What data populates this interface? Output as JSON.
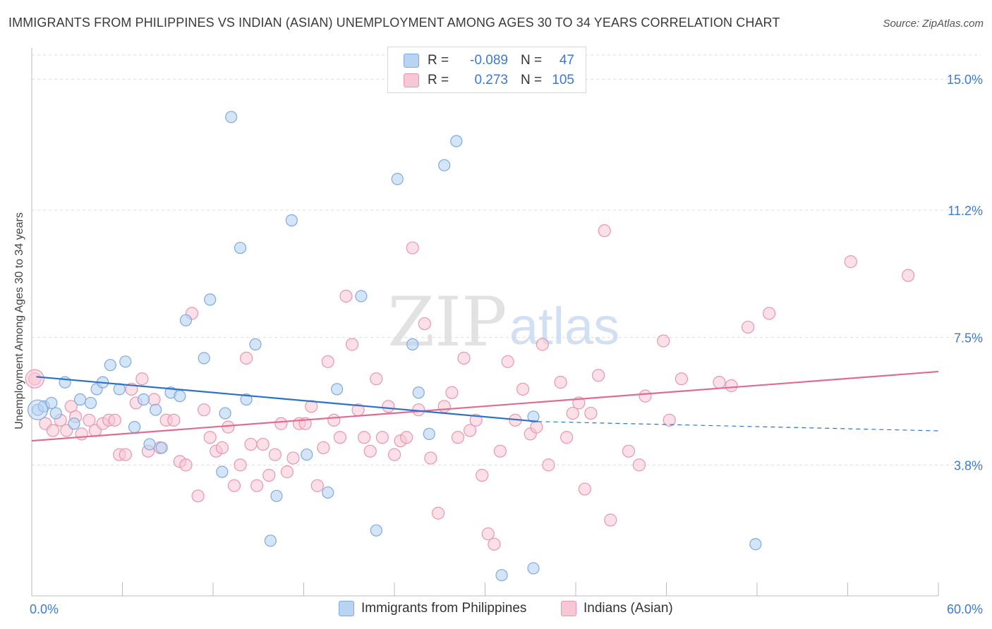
{
  "title": "IMMIGRANTS FROM PHILIPPINES VS INDIAN (ASIAN) UNEMPLOYMENT AMONG AGES 30 TO 34 YEARS CORRELATION CHART",
  "source": "Source: ZipAtlas.com",
  "watermark": {
    "zip": "ZIP",
    "atlas": "atlas"
  },
  "legend": {
    "rows": [
      {
        "r_label": "R =",
        "r_value": "-0.089",
        "n_label": "N =",
        "n_value": "47"
      },
      {
        "r_label": "R =",
        "r_value": "0.273",
        "n_label": "N =",
        "n_value": "105"
      }
    ]
  },
  "colors": {
    "blue_fill": "#b9d3f3",
    "blue_stroke": "#7ea9e0",
    "blue_line": "#2c72c9",
    "pink_fill": "#f7c7d6",
    "pink_stroke": "#e996b0",
    "pink_line": "#e06c93",
    "tick_label": "#3d7ad1",
    "grid": "#dddddd"
  },
  "chart_data": {
    "type": "scatter",
    "title": "IMMIGRANTS FROM PHILIPPINES VS INDIAN (ASIAN) UNEMPLOYMENT AMONG AGES 30 TO 34 YEARS CORRELATION CHART",
    "xlabel": "",
    "ylabel": "Unemployment Among Ages 30 to 34 years",
    "xlim": [
      0,
      60
    ],
    "ylim": [
      0,
      15.7
    ],
    "x_tick_labels": [
      "0.0%",
      "60.0%"
    ],
    "y_ticks": [
      3.8,
      7.5,
      11.2,
      15.0
    ],
    "y_tick_labels": [
      "3.8%",
      "7.5%",
      "11.2%",
      "15.0%"
    ],
    "grid": "horizontal dashed",
    "legend_position": "top-center",
    "series": [
      {
        "name": "Immigrants from Philippines",
        "color": "#b9d3f3",
        "trend": {
          "x": [
            0.3,
            33.5
          ],
          "y": [
            6.36,
            5.06
          ],
          "dashed_to": [
            60,
            4.79
          ]
        },
        "points": [
          [
            0.4,
            5.4
          ],
          [
            0.8,
            5.5
          ],
          [
            1.3,
            5.6
          ],
          [
            1.6,
            5.3
          ],
          [
            2.2,
            6.2
          ],
          [
            2.8,
            5.0
          ],
          [
            3.2,
            5.7
          ],
          [
            3.9,
            5.6
          ],
          [
            4.3,
            6.0
          ],
          [
            4.7,
            6.2
          ],
          [
            5.2,
            6.7
          ],
          [
            5.8,
            6.0
          ],
          [
            6.2,
            6.8
          ],
          [
            6.8,
            4.9
          ],
          [
            7.4,
            5.7
          ],
          [
            7.8,
            4.4
          ],
          [
            8.2,
            5.4
          ],
          [
            8.6,
            4.3
          ],
          [
            9.2,
            5.9
          ],
          [
            9.8,
            5.8
          ],
          [
            10.2,
            8.0
          ],
          [
            11.4,
            6.9
          ],
          [
            11.8,
            8.6
          ],
          [
            12.6,
            3.6
          ],
          [
            12.8,
            5.3
          ],
          [
            13.2,
            13.9
          ],
          [
            13.8,
            10.1
          ],
          [
            14.2,
            5.7
          ],
          [
            14.8,
            7.3
          ],
          [
            15.8,
            1.6
          ],
          [
            16.2,
            2.9
          ],
          [
            17.2,
            10.9
          ],
          [
            18.2,
            4.1
          ],
          [
            19.6,
            3.0
          ],
          [
            20.2,
            6.0
          ],
          [
            21.8,
            8.7
          ],
          [
            22.8,
            1.9
          ],
          [
            24.2,
            12.1
          ],
          [
            25.2,
            7.3
          ],
          [
            25.6,
            5.9
          ],
          [
            26.3,
            4.7
          ],
          [
            27.3,
            12.5
          ],
          [
            28.1,
            13.2
          ],
          [
            31.1,
            0.6
          ],
          [
            33.2,
            5.2
          ],
          [
            33.2,
            0.8
          ],
          [
            47.9,
            1.5
          ]
        ]
      },
      {
        "name": "Indians (Asian)",
        "color": "#f7c7d6",
        "trend": {
          "x": [
            0,
            60
          ],
          "y": [
            4.5,
            6.51
          ]
        },
        "points": [
          [
            0.2,
            6.3
          ],
          [
            0.9,
            5.0
          ],
          [
            1.4,
            4.8
          ],
          [
            1.9,
            5.1
          ],
          [
            2.3,
            4.8
          ],
          [
            2.6,
            5.5
          ],
          [
            2.9,
            5.2
          ],
          [
            3.3,
            4.7
          ],
          [
            3.8,
            5.1
          ],
          [
            4.2,
            4.8
          ],
          [
            4.7,
            5.0
          ],
          [
            5.1,
            5.1
          ],
          [
            5.5,
            5.1
          ],
          [
            5.8,
            4.1
          ],
          [
            6.2,
            4.1
          ],
          [
            6.6,
            6.0
          ],
          [
            6.9,
            5.6
          ],
          [
            7.3,
            6.3
          ],
          [
            7.7,
            4.2
          ],
          [
            8.1,
            5.7
          ],
          [
            8.5,
            4.3
          ],
          [
            8.9,
            5.1
          ],
          [
            9.4,
            5.1
          ],
          [
            9.8,
            3.9
          ],
          [
            10.2,
            3.8
          ],
          [
            10.6,
            8.2
          ],
          [
            11.0,
            2.9
          ],
          [
            11.4,
            5.4
          ],
          [
            11.8,
            4.6
          ],
          [
            12.2,
            4.2
          ],
          [
            12.6,
            4.3
          ],
          [
            13.0,
            4.9
          ],
          [
            13.4,
            3.2
          ],
          [
            13.8,
            3.8
          ],
          [
            14.2,
            6.9
          ],
          [
            14.5,
            4.4
          ],
          [
            14.9,
            3.2
          ],
          [
            15.3,
            4.4
          ],
          [
            15.7,
            3.5
          ],
          [
            16.1,
            4.1
          ],
          [
            16.5,
            5.0
          ],
          [
            16.9,
            3.6
          ],
          [
            17.3,
            4.0
          ],
          [
            17.7,
            5.0
          ],
          [
            18.1,
            5.0
          ],
          [
            18.5,
            5.5
          ],
          [
            18.9,
            3.2
          ],
          [
            19.3,
            4.3
          ],
          [
            19.6,
            6.8
          ],
          [
            20.0,
            5.1
          ],
          [
            20.4,
            4.6
          ],
          [
            20.8,
            8.7
          ],
          [
            21.2,
            7.3
          ],
          [
            21.6,
            5.4
          ],
          [
            22.0,
            4.6
          ],
          [
            22.4,
            4.2
          ],
          [
            22.8,
            6.3
          ],
          [
            23.2,
            4.6
          ],
          [
            23.6,
            5.5
          ],
          [
            24.0,
            4.1
          ],
          [
            24.4,
            4.5
          ],
          [
            24.8,
            4.6
          ],
          [
            25.2,
            10.1
          ],
          [
            25.6,
            5.4
          ],
          [
            26.0,
            7.9
          ],
          [
            26.4,
            4.0
          ],
          [
            26.9,
            2.4
          ],
          [
            27.3,
            5.5
          ],
          [
            27.8,
            5.9
          ],
          [
            28.2,
            4.6
          ],
          [
            28.6,
            6.9
          ],
          [
            29.0,
            4.8
          ],
          [
            29.4,
            5.1
          ],
          [
            29.8,
            3.5
          ],
          [
            30.2,
            1.8
          ],
          [
            30.6,
            1.5
          ],
          [
            31.0,
            4.2
          ],
          [
            31.5,
            6.8
          ],
          [
            32.0,
            5.1
          ],
          [
            32.5,
            6.0
          ],
          [
            33.0,
            4.7
          ],
          [
            33.4,
            4.9
          ],
          [
            33.8,
            7.3
          ],
          [
            34.2,
            3.8
          ],
          [
            35.0,
            6.2
          ],
          [
            35.4,
            4.6
          ],
          [
            35.8,
            5.3
          ],
          [
            36.2,
            5.6
          ],
          [
            36.6,
            3.1
          ],
          [
            37.0,
            5.3
          ],
          [
            37.5,
            6.4
          ],
          [
            37.9,
            10.6
          ],
          [
            38.3,
            2.2
          ],
          [
            39.5,
            4.2
          ],
          [
            40.2,
            3.8
          ],
          [
            40.6,
            5.8
          ],
          [
            41.8,
            7.4
          ],
          [
            42.2,
            5.1
          ],
          [
            43.0,
            6.3
          ],
          [
            45.5,
            6.2
          ],
          [
            46.3,
            6.1
          ],
          [
            47.4,
            7.8
          ],
          [
            48.8,
            8.2
          ],
          [
            54.2,
            9.7
          ],
          [
            58.0,
            9.3
          ]
        ]
      }
    ]
  },
  "bottom_legend": [
    "Immigrants from Philippines",
    "Indians (Asian)"
  ]
}
